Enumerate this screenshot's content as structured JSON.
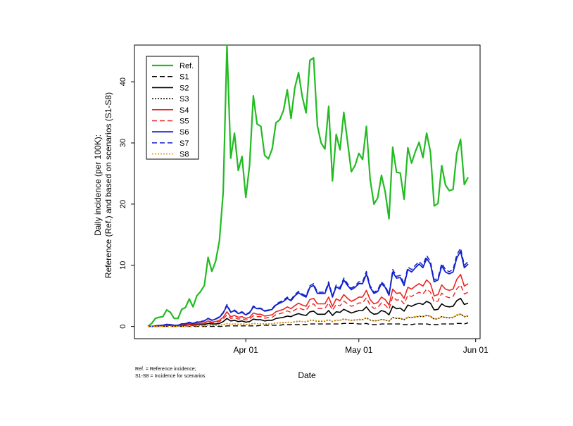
{
  "chart_data": {
    "type": "line",
    "title": "",
    "xlabel": "Date",
    "ylabel_line1": "Daily incidence (per 100K):",
    "ylabel_line2": "Reference (Ref.) and based on scenarios (S1-S8)",
    "ylim": [
      -2,
      46
    ],
    "y_ticks": [
      0,
      10,
      20,
      30,
      40
    ],
    "x_start_date": "2020-03-06",
    "x_tick_labels": [
      {
        "label": "Apr 01",
        "date": "2020-04-01"
      },
      {
        "label": "May 01",
        "date": "2020-05-01"
      },
      {
        "label": "Jun 01",
        "date": "2020-06-01"
      }
    ],
    "legend_position": "top-left",
    "grid": false,
    "footnote": [
      "Ref. = Reference incidence;",
      "S1-S8 = Incidence for scenarios"
    ],
    "series": [
      {
        "name": "Ref.",
        "color": "#22bb22",
        "dash": "solid",
        "width": 2.2,
        "values": [
          0,
          0.5,
          1.3,
          1.5,
          1.6,
          2.7,
          2.3,
          1.3,
          1.3,
          2.8,
          3.1,
          4.5,
          3.2,
          5.0,
          5.7,
          6.7,
          11.3,
          9.0,
          10.7,
          14.0,
          22.0,
          46.0,
          27.5,
          31.6,
          25.5,
          27.8,
          21.1,
          26.3,
          37.7,
          33.1,
          32.7,
          28.0,
          27.4,
          29.0,
          33.3,
          33.8,
          35.3,
          38.7,
          34.0,
          39.0,
          41.5,
          37.5,
          34.9,
          43.5,
          43.9,
          32.8,
          30.0,
          29.0,
          36.0,
          23.8,
          31.4,
          28.9,
          35.0,
          30.2,
          25.3,
          26.3,
          28.3,
          27.3,
          32.7,
          24.1,
          20.0,
          21.0,
          24.7,
          22.0,
          17.6,
          29.3,
          25.2,
          25.1,
          20.8,
          29.2,
          26.7,
          28.6,
          30.1,
          27.6,
          31.6,
          28.5,
          19.7,
          20.1,
          26.3,
          23.1,
          22.2,
          22.4,
          28.3,
          30.6,
          23.2,
          24.4
        ]
      },
      {
        "name": "S1",
        "color": "#000000",
        "dash": "7,4",
        "width": 1.4,
        "values": [
          0,
          0,
          0,
          0,
          0,
          0,
          0,
          0,
          0,
          0,
          0,
          0,
          0,
          0,
          0,
          0,
          0,
          0,
          0,
          0,
          0,
          0.1,
          0.1,
          0.1,
          0.1,
          0.1,
          0.1,
          0.1,
          0.1,
          0.1,
          0.2,
          0.2,
          0.2,
          0.2,
          0.2,
          0.2,
          0.3,
          0.3,
          0.3,
          0.3,
          0.3,
          0.3,
          0.3,
          0.4,
          0.4,
          0.4,
          0.4,
          0.4,
          0.4,
          0.4,
          0.4,
          0.4,
          0.5,
          0.5,
          0.5,
          0.5,
          0.4,
          0.4,
          0.5,
          0.3,
          0.3,
          0.3,
          0.4,
          0.4,
          0.4,
          0.4,
          0.4,
          0.4,
          0.3,
          0.3,
          0.3,
          0.4,
          0.4,
          0.4,
          0.4,
          0.3,
          0.3,
          0.3,
          0.4,
          0.4,
          0.4,
          0.4,
          0.5,
          0.5,
          0.4,
          0.6
        ]
      },
      {
        "name": "S2",
        "color": "#000000",
        "dash": "solid",
        "width": 1.6,
        "values": [
          0,
          0,
          0.05,
          0.1,
          0.1,
          0.2,
          0.15,
          0.1,
          0.1,
          0.2,
          0.2,
          0.3,
          0.2,
          0.3,
          0.3,
          0.3,
          0.5,
          0.4,
          0.4,
          0.5,
          0.8,
          1.3,
          0.9,
          1.0,
          0.8,
          0.9,
          0.7,
          0.8,
          1.2,
          1.1,
          1.1,
          0.9,
          1.0,
          1.0,
          1.3,
          1.4,
          1.5,
          1.7,
          1.6,
          1.9,
          2.1,
          1.9,
          1.8,
          2.4,
          2.5,
          2.0,
          2.0,
          2.0,
          2.6,
          1.8,
          2.4,
          2.3,
          2.8,
          2.5,
          2.2,
          2.4,
          2.6,
          2.6,
          3.2,
          2.4,
          2.0,
          2.1,
          2.6,
          2.4,
          1.9,
          3.3,
          2.9,
          3.0,
          2.5,
          3.5,
          3.3,
          3.6,
          3.8,
          3.6,
          4.1,
          3.8,
          2.7,
          2.8,
          3.7,
          3.3,
          3.2,
          3.3,
          4.2,
          4.6,
          3.6,
          3.8
        ]
      },
      {
        "name": "S3",
        "color": "#000000",
        "dash": "2,2",
        "width": 1.5,
        "values": [
          0,
          0,
          0,
          0,
          0,
          0,
          0,
          0,
          0,
          0,
          0,
          0.1,
          0.05,
          0.1,
          0.1,
          0.1,
          0.2,
          0.15,
          0.2,
          0.2,
          0.3,
          0.5,
          0.35,
          0.4,
          0.35,
          0.4,
          0.3,
          0.35,
          0.5,
          0.45,
          0.45,
          0.4,
          0.4,
          0.45,
          0.55,
          0.6,
          0.6,
          0.7,
          0.65,
          0.75,
          0.85,
          0.8,
          0.75,
          1.0,
          1.0,
          0.85,
          0.85,
          0.85,
          1.1,
          0.8,
          1.0,
          1.0,
          1.2,
          1.1,
          1.0,
          1.05,
          1.1,
          1.1,
          1.4,
          1.05,
          0.9,
          0.95,
          1.15,
          1.05,
          0.85,
          1.45,
          1.3,
          1.3,
          1.1,
          1.5,
          1.45,
          1.55,
          1.65,
          1.6,
          1.8,
          1.65,
          1.2,
          1.25,
          1.6,
          1.45,
          1.4,
          1.45,
          1.85,
          2.0,
          1.6,
          1.7
        ]
      },
      {
        "name": "S4",
        "color": "#ee2222",
        "dash": "solid",
        "width": 1.6,
        "values": [
          0,
          0,
          0.05,
          0.1,
          0.15,
          0.25,
          0.2,
          0.15,
          0.15,
          0.3,
          0.3,
          0.45,
          0.35,
          0.5,
          0.5,
          0.6,
          0.9,
          0.7,
          0.8,
          1.0,
          1.5,
          2.4,
          1.6,
          1.8,
          1.5,
          1.6,
          1.3,
          1.5,
          2.2,
          2.0,
          2.0,
          1.7,
          1.8,
          1.9,
          2.4,
          2.6,
          2.8,
          3.2,
          2.9,
          3.4,
          3.8,
          3.5,
          3.3,
          4.4,
          4.6,
          3.7,
          3.7,
          3.7,
          4.8,
          3.3,
          4.5,
          4.2,
          5.2,
          4.6,
          4.1,
          4.4,
          4.8,
          4.8,
          5.9,
          4.4,
          3.7,
          3.9,
          4.8,
          4.4,
          3.5,
          6.1,
          5.4,
          5.5,
          4.6,
          6.4,
          6.1,
          6.6,
          7.0,
          6.6,
          7.6,
          7.0,
          5.0,
          5.2,
          6.8,
          6.1,
          5.9,
          6.1,
          7.7,
          8.5,
          6.6,
          7.0
        ]
      },
      {
        "name": "S5",
        "color": "#ee2222",
        "dash": "7,4",
        "width": 1.4,
        "values": [
          0,
          0,
          0.05,
          0.1,
          0.1,
          0.2,
          0.15,
          0.1,
          0.1,
          0.25,
          0.25,
          0.35,
          0.3,
          0.4,
          0.4,
          0.5,
          0.7,
          0.55,
          0.65,
          0.8,
          1.2,
          1.9,
          1.3,
          1.45,
          1.2,
          1.3,
          1.05,
          1.2,
          1.75,
          1.6,
          1.6,
          1.35,
          1.45,
          1.5,
          1.9,
          2.1,
          2.25,
          2.55,
          2.3,
          2.7,
          3.05,
          2.8,
          2.65,
          3.5,
          3.7,
          2.95,
          2.95,
          2.95,
          3.85,
          2.65,
          3.6,
          3.35,
          4.15,
          3.7,
          3.3,
          3.5,
          3.85,
          3.85,
          4.7,
          3.5,
          2.95,
          3.1,
          3.85,
          3.5,
          2.8,
          4.9,
          4.3,
          4.4,
          3.7,
          5.1,
          4.9,
          5.3,
          5.6,
          5.3,
          6.1,
          5.6,
          4.0,
          4.15,
          5.45,
          4.9,
          4.7,
          4.9,
          6.15,
          6.8,
          5.3,
          5.6
        ]
      },
      {
        "name": "S6",
        "color": "#1122cc",
        "dash": "solid",
        "width": 1.8,
        "values": [
          0,
          0,
          0.1,
          0.15,
          0.2,
          0.35,
          0.3,
          0.2,
          0.2,
          0.4,
          0.45,
          0.65,
          0.5,
          0.7,
          0.75,
          0.9,
          1.3,
          1.0,
          1.2,
          1.5,
          2.2,
          3.4,
          2.3,
          2.6,
          2.1,
          2.3,
          1.9,
          2.2,
          3.2,
          2.9,
          2.9,
          2.5,
          2.6,
          2.8,
          3.5,
          3.8,
          4.1,
          4.6,
          4.2,
          5.0,
          5.5,
          5.1,
          4.8,
          6.4,
          6.7,
          5.4,
          5.4,
          5.4,
          7.0,
          4.8,
          6.5,
          6.1,
          7.6,
          6.7,
          6.0,
          6.4,
          7.0,
          7.0,
          8.6,
          6.4,
          5.4,
          5.7,
          7.0,
          6.4,
          5.1,
          8.9,
          7.9,
          8.0,
          6.7,
          9.3,
          8.9,
          9.6,
          10.2,
          9.6,
          11.1,
          10.2,
          7.3,
          7.6,
          9.9,
          8.9,
          8.6,
          8.9,
          11.2,
          12.3,
          9.6,
          10.2
        ]
      },
      {
        "name": "S7",
        "color": "#1122cc",
        "dash": "7,4",
        "width": 1.5,
        "values": [
          0,
          0,
          0.1,
          0.15,
          0.2,
          0.35,
          0.3,
          0.2,
          0.2,
          0.45,
          0.45,
          0.7,
          0.5,
          0.75,
          0.8,
          0.95,
          1.35,
          1.05,
          1.25,
          1.6,
          2.3,
          3.6,
          2.4,
          2.7,
          2.2,
          2.4,
          2.0,
          2.3,
          3.35,
          3.0,
          3.0,
          2.6,
          2.7,
          2.9,
          3.65,
          4.0,
          4.3,
          4.8,
          4.4,
          5.2,
          5.75,
          5.3,
          5.0,
          6.65,
          7.0,
          5.6,
          5.6,
          5.6,
          7.3,
          5.0,
          6.8,
          6.35,
          7.9,
          7.0,
          6.25,
          6.65,
          7.3,
          7.3,
          9.0,
          6.65,
          5.6,
          5.95,
          7.3,
          6.65,
          5.3,
          9.3,
          8.2,
          8.35,
          7.0,
          9.7,
          9.3,
          10.0,
          10.6,
          10.0,
          11.6,
          10.6,
          7.6,
          7.9,
          10.3,
          9.3,
          8.95,
          9.3,
          11.7,
          12.8,
          10.0,
          10.6
        ]
      },
      {
        "name": "S8",
        "color": "#ee9900",
        "dash": "2,2",
        "width": 1.6,
        "values": [
          0,
          0,
          0,
          0,
          0,
          0,
          0,
          0,
          0,
          0,
          0,
          0.1,
          0.05,
          0.1,
          0.1,
          0.1,
          0.2,
          0.15,
          0.2,
          0.2,
          0.3,
          0.5,
          0.35,
          0.4,
          0.35,
          0.4,
          0.3,
          0.35,
          0.5,
          0.45,
          0.45,
          0.4,
          0.4,
          0.45,
          0.55,
          0.6,
          0.65,
          0.7,
          0.65,
          0.8,
          0.9,
          0.8,
          0.8,
          1.05,
          1.05,
          0.9,
          0.9,
          0.9,
          1.15,
          0.8,
          1.05,
          1.0,
          1.25,
          1.1,
          1.0,
          1.05,
          1.15,
          1.15,
          1.45,
          1.05,
          0.9,
          0.95,
          1.15,
          1.05,
          0.85,
          1.5,
          1.35,
          1.35,
          1.15,
          1.55,
          1.5,
          1.6,
          1.7,
          1.65,
          1.85,
          1.7,
          1.25,
          1.3,
          1.65,
          1.5,
          1.45,
          1.5,
          1.9,
          2.05,
          1.65,
          1.75
        ]
      }
    ]
  }
}
